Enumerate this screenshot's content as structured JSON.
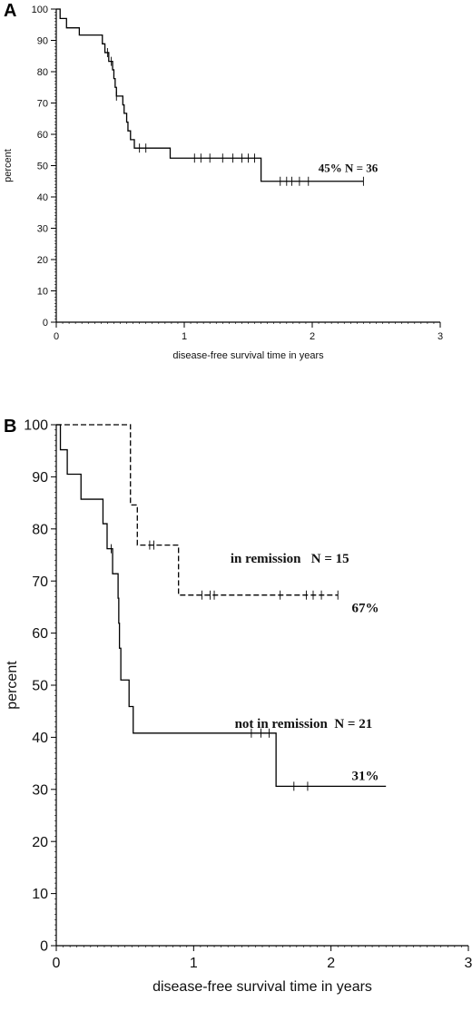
{
  "chart_data": [
    {
      "panel": "A",
      "type": "line",
      "xlabel": "disease-free survival time in years",
      "ylabel": "percent",
      "xlim": [
        0,
        3
      ],
      "ylim": [
        0,
        100
      ],
      "x_ticks": [
        0,
        1,
        2,
        3
      ],
      "y_ticks": [
        0,
        10,
        20,
        30,
        40,
        50,
        60,
        70,
        80,
        90,
        100
      ],
      "grid": false,
      "series": [
        {
          "style": "solid",
          "steps": [
            [
              0,
              100
            ],
            [
              0.03,
              97
            ],
            [
              0.08,
              94
            ],
            [
              0.18,
              91.7
            ],
            [
              0.36,
              88.9
            ],
            [
              0.38,
              86.1
            ],
            [
              0.41,
              83.3
            ],
            [
              0.44,
              80.6
            ],
            [
              0.45,
              77.8
            ],
            [
              0.46,
              75
            ],
            [
              0.47,
              72.2
            ],
            [
              0.52,
              69.4
            ],
            [
              0.53,
              66.7
            ],
            [
              0.55,
              63.9
            ],
            [
              0.56,
              61.1
            ],
            [
              0.58,
              58.3
            ],
            [
              0.61,
              55.6
            ],
            [
              0.89,
              52.4
            ],
            [
              1.6,
              45
            ],
            [
              2.4,
              45
            ]
          ],
          "censor_x": [
            0.4,
            0.43,
            0.47,
            0.65,
            0.7,
            1.08,
            1.13,
            1.2,
            1.3,
            1.38,
            1.45,
            1.5,
            1.55,
            1.75,
            1.8,
            1.84,
            1.9,
            1.97,
            2.4
          ]
        }
      ],
      "annotations": [
        {
          "text": "45% N = 36",
          "x": 2.28,
          "y": 48
        }
      ]
    },
    {
      "panel": "B",
      "type": "line",
      "xlabel": "disease-free survival time in years",
      "ylabel": "percent",
      "xlim": [
        0,
        3
      ],
      "ylim": [
        0,
        100
      ],
      "x_ticks": [
        0,
        1,
        2,
        3
      ],
      "y_ticks": [
        0,
        10,
        20,
        30,
        40,
        50,
        60,
        70,
        80,
        90,
        100
      ],
      "grid": false,
      "series": [
        {
          "style": "dashed",
          "steps": [
            [
              0,
              100
            ],
            [
              0.54,
              84.6
            ],
            [
              0.59,
              76.9
            ],
            [
              0.89,
              67.3
            ],
            [
              2.05,
              67.3
            ]
          ],
          "censor_x": [
            0.68,
            0.71,
            1.06,
            1.12,
            1.15,
            1.63,
            1.82,
            1.87,
            1.93,
            2.05
          ]
        },
        {
          "style": "solid",
          "steps": [
            [
              0,
              100
            ],
            [
              0.03,
              95.2
            ],
            [
              0.08,
              90.5
            ],
            [
              0.18,
              85.7
            ],
            [
              0.34,
              81
            ],
            [
              0.37,
              76.2
            ],
            [
              0.41,
              71.4
            ],
            [
              0.45,
              66.7
            ],
            [
              0.455,
              61.9
            ],
            [
              0.46,
              57.1
            ],
            [
              0.47,
              51
            ],
            [
              0.53,
              45.9
            ],
            [
              0.56,
              40.8
            ],
            [
              1.6,
              30.6
            ],
            [
              2.4,
              30.6
            ]
          ],
          "censor_x": [
            0.4,
            1.42,
            1.49,
            1.55,
            1.73,
            1.83
          ]
        }
      ],
      "annotations": [
        {
          "text": "in remission   N = 15",
          "x": 1.7,
          "y": 73.5
        },
        {
          "text": "67%",
          "x": 2.25,
          "y": 64
        },
        {
          "text": "not in remission  N = 21",
          "x": 1.8,
          "y": 41.8
        },
        {
          "text": "31%",
          "x": 2.25,
          "y": 31.8
        }
      ]
    }
  ]
}
